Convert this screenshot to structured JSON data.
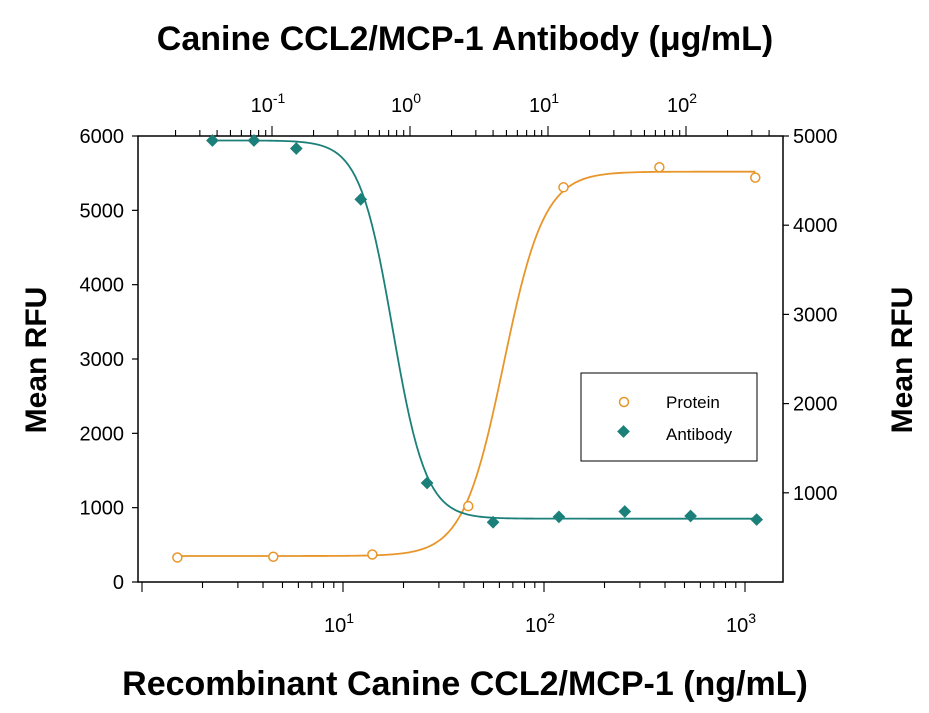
{
  "chart_data": {
    "type": "scatter",
    "title": "Canine CCL2/MCP-1 Antibody (μg/mL)",
    "xlabel": "Recombinant Canine CCL2/MCP-1 (ng/mL)",
    "ylabel_left": "Mean RFU",
    "ylabel_right": "Mean RFU",
    "x_scale": "log",
    "xlim": [
      1.2,
      1500
    ],
    "x_ticks": [
      {
        "base": "10",
        "exp": "1",
        "value": 10
      },
      {
        "base": "10",
        "exp": "2",
        "value": 100
      },
      {
        "base": "10",
        "exp": "3",
        "value": 1000
      }
    ],
    "x2_scale": "log",
    "x2_ticks": [
      {
        "base": "10",
        "exp": "-1",
        "value": 0.1
      },
      {
        "base": "10",
        "exp": "0",
        "value": 1
      },
      {
        "base": "10",
        "exp": "1",
        "value": 10
      },
      {
        "base": "10",
        "exp": "2",
        "value": 100
      }
    ],
    "ylim_left": [
      0,
      6000
    ],
    "y_ticks_left": [
      "0",
      "1000",
      "2000",
      "3000",
      "4000",
      "5000",
      "6000"
    ],
    "ylim_right": [
      0,
      5000
    ],
    "y_ticks_right": [
      "1000",
      "2000",
      "3000",
      "4000",
      "5000"
    ],
    "legend_position": "center-right",
    "series": [
      {
        "name": "Protein",
        "marker": "open-circle",
        "color": "#E8962A",
        "axis": "bottom-left",
        "x": [
          1.5,
          4.5,
          14,
          42,
          125,
          375,
          1125
        ],
        "y": [
          330,
          340,
          370,
          1020,
          5310,
          5580,
          5440
        ],
        "fit": {
          "bottom": 350,
          "top": 5520,
          "ec50": 63,
          "hill": 4.3
        }
      },
      {
        "name": "Antibody",
        "marker": "filled-diamond",
        "color": "#1B7F7A",
        "axis": "top-right",
        "x": [
          0.037,
          0.074,
          0.15,
          0.44,
          1.33,
          4,
          12,
          36,
          108,
          325
        ],
        "y": [
          4950,
          4950,
          4860,
          4290,
          1110,
          670,
          730,
          790,
          740,
          700
        ],
        "fit": {
          "bottom": 710,
          "top": 4950,
          "ec50": 0.75,
          "hill": 3.6
        }
      }
    ]
  }
}
